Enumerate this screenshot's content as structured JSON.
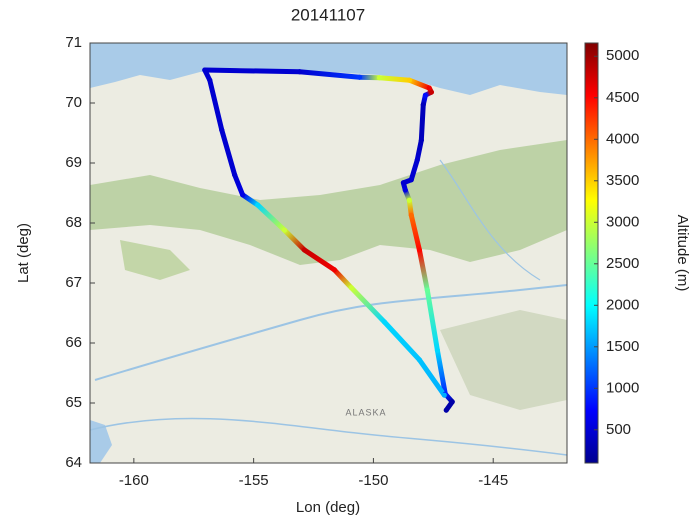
{
  "chart_data": {
    "type": "scatter",
    "title": "20141107",
    "x_label": "Lon (deg)",
    "y_label": "Lat (deg)",
    "colorbar_label": "Altitude (m)",
    "map_label": "ALASKA",
    "colormap": "jet",
    "x": [
      -146.96,
      -146.71,
      -147.0,
      -147.33,
      -147.75,
      -148.08,
      -148.42,
      -148.5,
      -148.67,
      -148.75,
      -148.42,
      -148.17,
      -148.0,
      -147.92,
      -147.83,
      -147.58,
      -147.67,
      -148.5,
      -149.75,
      -150.58,
      -153.08,
      -157.04,
      -156.83,
      -156.33,
      -155.79,
      -155.46,
      -154.83,
      -153.71,
      -152.88,
      -151.63,
      -150.92,
      -149.54,
      -148.08,
      -147.04
    ],
    "y": [
      64.88,
      65.02,
      65.15,
      65.88,
      66.88,
      67.55,
      68.13,
      68.38,
      68.55,
      68.67,
      68.72,
      69.05,
      69.38,
      69.97,
      70.13,
      70.18,
      70.25,
      70.38,
      70.42,
      70.43,
      70.52,
      70.55,
      70.38,
      69.55,
      68.8,
      68.47,
      68.3,
      67.88,
      67.55,
      67.22,
      66.92,
      66.35,
      65.72,
      65.13
    ],
    "color_values": [
      300,
      300,
      900,
      1800,
      2500,
      4500,
      4000,
      3000,
      600,
      500,
      500,
      500,
      400,
      400,
      800,
      4800,
      4600,
      3500,
      3000,
      1000,
      500,
      500,
      500,
      500,
      500,
      600,
      1800,
      3000,
      4800,
      4600,
      3000,
      1800,
      1700,
      1600
    ],
    "xlim": [
      -161.83,
      -141.92
    ],
    "ylim": [
      64,
      71
    ],
    "clim": [
      100,
      5160
    ],
    "xticks": [
      -160,
      -155,
      -150,
      -145
    ],
    "yticks": [
      64,
      65,
      66,
      67,
      68,
      69,
      70,
      71
    ],
    "cticks": [
      500,
      1000,
      1500,
      2000,
      2500,
      3000,
      3500,
      4000,
      4500,
      5000
    ]
  }
}
